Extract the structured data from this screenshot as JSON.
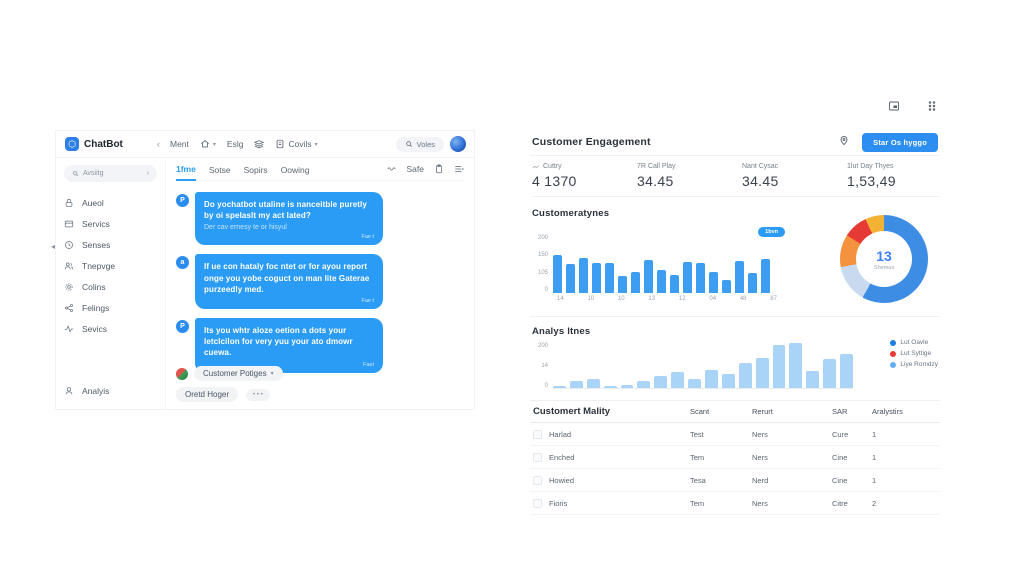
{
  "chat_panel": {
    "brand": "ChatBot",
    "collapse": "‹",
    "toolbar": {
      "item1": "Ment",
      "item2": "Eslg",
      "item3": "Covils",
      "search": "Voles"
    },
    "sidebar": {
      "search": "Avsiitg",
      "items": [
        {
          "label": "Aueol",
          "icon": "lock-icon"
        },
        {
          "label": "Servics",
          "icon": "card-icon"
        },
        {
          "label": "Senses",
          "icon": "clock-icon"
        },
        {
          "label": "Tnepvge",
          "icon": "users-icon"
        },
        {
          "label": "Colins",
          "icon": "gear-icon"
        },
        {
          "label": "Felings",
          "icon": "share-icon"
        },
        {
          "label": "Sevics",
          "icon": "activity-icon"
        }
      ],
      "footer": {
        "label": "Analyis",
        "icon": "person-icon"
      }
    },
    "tabs": [
      "1fme",
      "Sotse",
      "Sopirs",
      "Oowing"
    ],
    "tabs_action": "Safe",
    "messages": [
      {
        "avatar": "P",
        "text": "Do yochatbot utaline is nanceitble puretly by oi spelaslt my act lated?",
        "sub": "Der cav ernesy te or hisyul",
        "time": "Fae t"
      },
      {
        "avatar": "a",
        "text": "If ue con hataly foc ntet or for ayou report onge you yobe coguct on man lite Gaterae purzeedly med.",
        "sub": "",
        "time": "Fae t"
      },
      {
        "avatar": "P",
        "text": "Its you whtr aloze oetion a dots your letclcilon for very yuu your ato dmowr cuewa.",
        "sub": "",
        "time": "Faet"
      }
    ],
    "composer": {
      "agent_name": "Customer Potiges",
      "draft_pill": "Oretd Hoger",
      "more_pill": "• • •"
    }
  },
  "dashboard": {
    "title": "Customer Engagement",
    "cta": "Star Os hyggo",
    "stats": [
      {
        "label": "Cuttry",
        "value": "4 1370",
        "has_icon": true
      },
      {
        "label": "7R Call Play",
        "value": "34.45",
        "has_icon": false
      },
      {
        "label": "Nant Cysac",
        "value": "34.45",
        "has_icon": false
      },
      {
        "label": "1lut Day Thyes",
        "value": "1,53,49",
        "has_icon": false
      }
    ],
    "section1_title": "Customeratynes",
    "section2_title": "Analys ltnes",
    "table": {
      "title": "Customert Mality",
      "headers": [
        "Scant",
        "Rerurt",
        "SAR",
        "Aralystirs"
      ],
      "rows": [
        [
          "Harlad",
          "Test",
          "Ners",
          "Cure",
          "1"
        ],
        [
          "Enched",
          "Tem",
          "Ners",
          "Cine",
          "1"
        ],
        [
          "Howied",
          "Tesa",
          "Nerd",
          "Cine",
          "1"
        ],
        [
          "Fioris",
          "Tem",
          "Ners",
          "Citre",
          "2"
        ]
      ]
    }
  },
  "chart_data": [
    {
      "type": "bar",
      "title": "Customeratynes",
      "values": [
        130,
        100,
        122,
        105,
        105,
        60,
        72,
        115,
        78,
        62,
        108,
        104,
        72,
        45,
        112,
        68,
        118
      ],
      "x_tick_labels": [
        "14",
        "10",
        "10",
        "13",
        "12",
        "04",
        "48",
        "87"
      ],
      "y_ticks": [
        "200",
        "150",
        "105",
        "0"
      ],
      "ylim": [
        0,
        200
      ],
      "bar_color": "#3d9df0",
      "tooltip": "1bvn",
      "grid": false,
      "xlabel": "",
      "ylabel": ""
    },
    {
      "type": "pie",
      "title": "Customeratynes share",
      "center_value": "13",
      "center_label": "Shemus",
      "segments": [
        {
          "name": "yellow",
          "value": 7,
          "color": "#f2b233"
        },
        {
          "name": "blue",
          "value": 58,
          "color": "#3d8de5"
        },
        {
          "name": "light-blue",
          "value": 14,
          "color": "#c9daf0"
        },
        {
          "name": "orange",
          "value": 12,
          "color": "#f5923d"
        },
        {
          "name": "red",
          "value": 9,
          "color": "#e63b35"
        }
      ],
      "start_angle_deg": -25
    },
    {
      "type": "bar",
      "title": "Analys ltnes",
      "values": [
        8,
        35,
        45,
        8,
        18,
        35,
        60,
        85,
        45,
        95,
        75,
        130,
        155,
        225,
        235,
        90,
        150,
        175
      ],
      "y_ticks": [
        "200",
        "14",
        "0"
      ],
      "ylim": [
        0,
        240
      ],
      "bar_color": "#a9d3f7",
      "legend_position": "right",
      "legend": [
        {
          "label": "Lut Oavle",
          "color": "#1f7de0"
        },
        {
          "label": "Lut Syttige",
          "color": "#e63b35"
        },
        {
          "label": "Liye Romdzy",
          "color": "#63aef0"
        }
      ],
      "grid": false,
      "xlabel": "",
      "ylabel": ""
    }
  ]
}
